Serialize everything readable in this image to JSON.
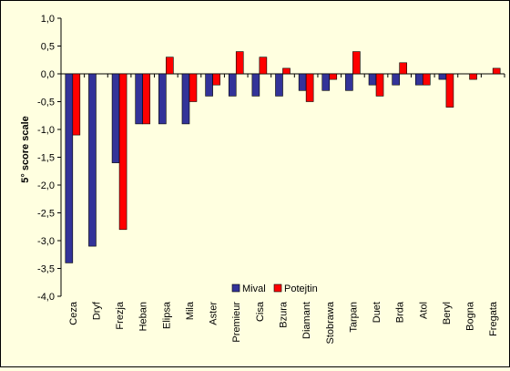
{
  "chart_data": {
    "type": "bar",
    "ylabel": "5° score scale",
    "xlabel": "",
    "ylim": [
      -4.0,
      1.0
    ],
    "y_ticks": [
      "1,0",
      "0,5",
      "0,0",
      "-0,5",
      "-1,0",
      "-1,5",
      "-2,0",
      "-2,5",
      "-3,0",
      "-3,5",
      "-4,0"
    ],
    "categories": [
      "Ceza",
      "Dryf",
      "Frezja",
      "Heban",
      "Elipsa",
      "Mila",
      "Aster",
      "Premieur",
      "Cisa",
      "Bzura",
      "Diamant",
      "Stobrawa",
      "Tarpan",
      "Duet",
      "Brda",
      "Atol",
      "Beryl",
      "Bogna",
      "Fregata"
    ],
    "series": [
      {
        "name": "Mival",
        "color": "#333399",
        "values": [
          -3.4,
          -3.1,
          -1.6,
          -0.9,
          -0.9,
          -0.9,
          -0.4,
          -0.4,
          -0.4,
          -0.4,
          -0.3,
          -0.3,
          -0.3,
          -0.2,
          -0.2,
          -0.2,
          -0.1,
          0,
          0
        ]
      },
      {
        "name": "Potejtin",
        "color": "#ff0000",
        "values": [
          -1.1,
          0,
          -2.8,
          -0.9,
          0.3,
          -0.5,
          -0.2,
          0.4,
          0.3,
          0.1,
          -0.5,
          -0.1,
          0.4,
          -0.4,
          0.2,
          -0.2,
          -0.6,
          -0.1,
          0.1
        ]
      }
    ],
    "grid": false,
    "legend_position": "bottom-center"
  }
}
